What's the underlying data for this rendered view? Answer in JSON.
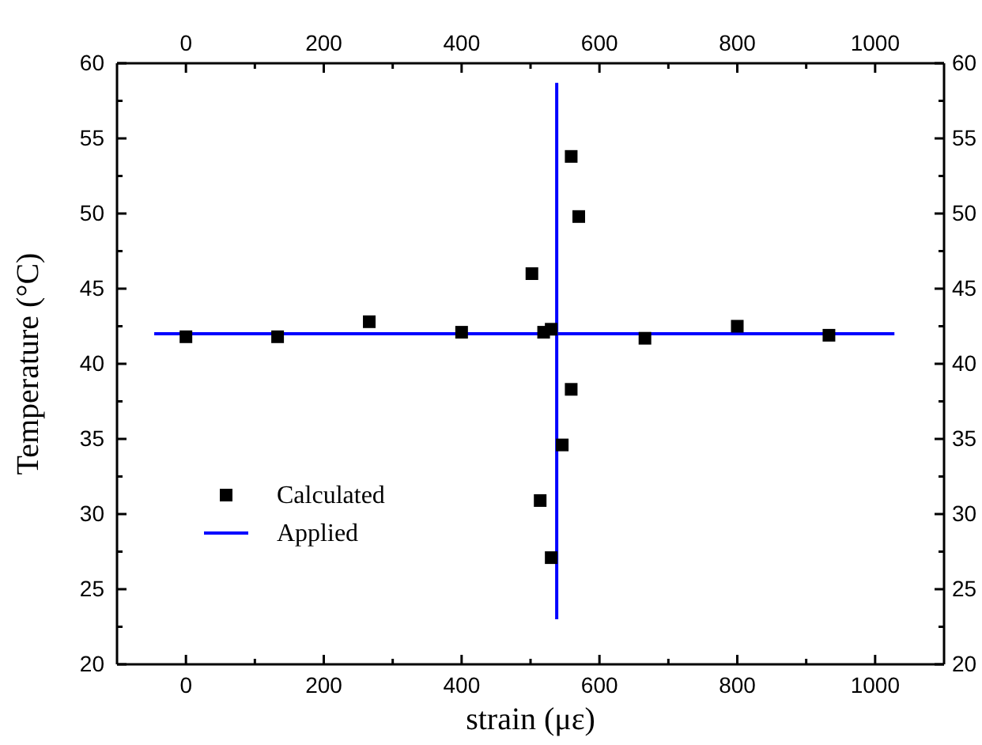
{
  "chart_data": {
    "type": "scatter",
    "xlabel": "strain (με)",
    "ylabel": "Temperature (°C)",
    "xlim": [
      -100,
      1100
    ],
    "xticks": [
      0,
      {
        "value": 100,
        "label": null
      },
      200,
      {
        "value": 300,
        "label": null
      },
      400,
      {
        "value": 500,
        "label": null
      },
      600,
      {
        "value": 700,
        "label": null
      },
      800,
      {
        "value": 900,
        "label": null
      },
      1000
    ],
    "x2lim": [
      -100,
      1100
    ],
    "x2ticks": [
      0,
      {
        "value": 100,
        "label": null
      },
      200,
      {
        "value": 300,
        "label": null
      },
      400,
      {
        "value": 500,
        "label": null
      },
      600,
      {
        "value": 700,
        "label": null
      },
      800,
      {
        "value": 900,
        "label": null
      },
      1000
    ],
    "ylim": [
      20,
      60
    ],
    "yticks": [
      20,
      {
        "value": 22.5,
        "label": null
      },
      25,
      {
        "value": 27.5,
        "label": null
      },
      30,
      {
        "value": 32.5,
        "label": null
      },
      35,
      {
        "value": 37.5,
        "label": null
      },
      40,
      {
        "value": 42.5,
        "label": null
      },
      45,
      {
        "value": 47.5,
        "label": null
      },
      50,
      {
        "value": 52.5,
        "label": null
      },
      55,
      {
        "value": 57.5,
        "label": null
      },
      60
    ],
    "y2lim": [
      20,
      60
    ],
    "y2ticks": [
      20,
      {
        "value": 22.5,
        "label": null
      },
      25,
      {
        "value": 27.5,
        "label": null
      },
      30,
      {
        "value": 32.5,
        "label": null
      },
      35,
      {
        "value": 37.5,
        "label": null
      },
      40,
      {
        "value": 42.5,
        "label": null
      },
      45,
      {
        "value": 47.5,
        "label": null
      },
      50,
      {
        "value": 52.5,
        "label": null
      },
      55,
      {
        "value": 57.5,
        "label": null
      },
      60
    ],
    "legend": "bottom left",
    "grid": false,
    "series": [
      {
        "name": "Calculated",
        "marker": "square",
        "color": "#000000",
        "x": [
          0,
          133,
          266,
          400,
          502,
          519,
          530,
          666,
          800,
          933,
          559,
          546,
          559,
          570,
          514,
          530
        ],
        "values": [
          41.8,
          41.8,
          42.8,
          42.1,
          46.0,
          42.1,
          42.3,
          41.7,
          42.5,
          41.9,
          38.3,
          34.6,
          53.8,
          49.8,
          30.9,
          27.1
        ]
      },
      {
        "name": "Applied",
        "type": "line",
        "marker": "none",
        "line_style": "solid",
        "color": "#0000ff",
        "x": [
          -46,
          1028,
          null,
          538,
          538
        ],
        "values": [
          42,
          42,
          null,
          23,
          58.7
        ]
      }
    ]
  }
}
